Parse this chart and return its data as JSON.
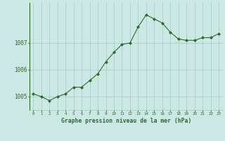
{
  "hours": [
    0,
    1,
    2,
    3,
    4,
    5,
    6,
    7,
    8,
    9,
    10,
    11,
    12,
    13,
    14,
    15,
    16,
    17,
    18,
    19,
    20,
    21,
    22,
    23
  ],
  "pressure": [
    1005.1,
    1005.0,
    1004.85,
    1005.0,
    1005.1,
    1005.35,
    1005.35,
    1005.6,
    1005.85,
    1006.3,
    1006.65,
    1006.95,
    1007.0,
    1007.6,
    1008.05,
    1007.9,
    1007.75,
    1007.4,
    1007.15,
    1007.1,
    1007.1,
    1007.2,
    1007.2,
    1007.35
  ],
  "line_color": "#2d6a2d",
  "marker_color": "#2d6a2d",
  "bg_color": "#cce8e4",
  "grid_color": "#9eccc4",
  "axis_label_color": "#2d6a2d",
  "tick_color": "#2d6a2d",
  "xlabel": "Graphe pression niveau de la mer (hPa)",
  "ylim": [
    1004.5,
    1008.5
  ],
  "yticks": [
    1005,
    1006,
    1007
  ],
  "xticks": [
    0,
    1,
    2,
    3,
    4,
    5,
    6,
    7,
    8,
    9,
    10,
    11,
    12,
    13,
    14,
    15,
    16,
    17,
    18,
    19,
    20,
    21,
    22,
    23
  ]
}
